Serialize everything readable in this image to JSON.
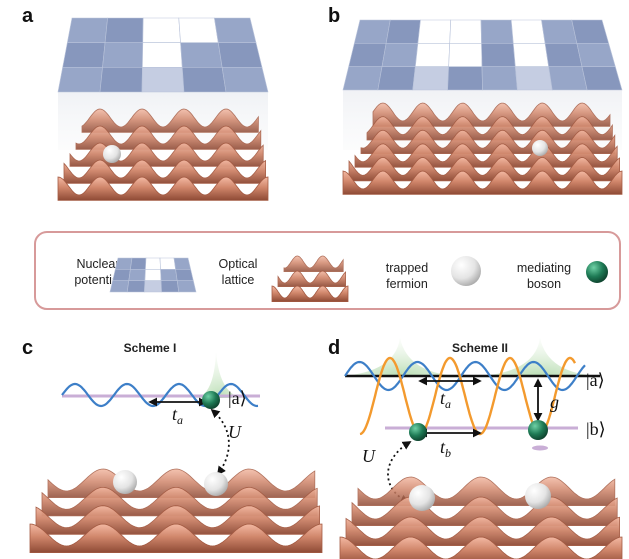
{
  "panels": {
    "a": "a",
    "b": "b",
    "c": "c",
    "d": "d"
  },
  "legend": {
    "nuclear": [
      "Nuclear",
      "potential"
    ],
    "optical": [
      "Optical",
      "lattice"
    ],
    "fermion": [
      "trapped",
      "fermion"
    ],
    "boson": [
      "mediating",
      "boson"
    ]
  },
  "scheme1": {
    "title": "Scheme I",
    "hop": "t",
    "hop_sub": "a",
    "interaction": "U",
    "ket_a": "|a⟩"
  },
  "scheme2": {
    "title": "Scheme II",
    "hop_a": "t",
    "hop_a_sub": "a",
    "hop_b": "t",
    "hop_b_sub": "b",
    "coupling": "g",
    "interaction": "U",
    "ket_a": "|a⟩",
    "ket_b": "|b⟩"
  },
  "colors": {
    "copper": "#d0866b",
    "copper_dark": "#8e4a35",
    "tile": "#8d9cbf",
    "tile_light": "#ffffff",
    "wave_blue": "#3d7fc8",
    "wave_orange": "#f39a2e",
    "level": "#c9aed6",
    "boson": "#1e7a55",
    "legend_border": "#d79a9a"
  },
  "icons": {
    "fermion": "white-sphere",
    "boson": "green-sphere"
  }
}
